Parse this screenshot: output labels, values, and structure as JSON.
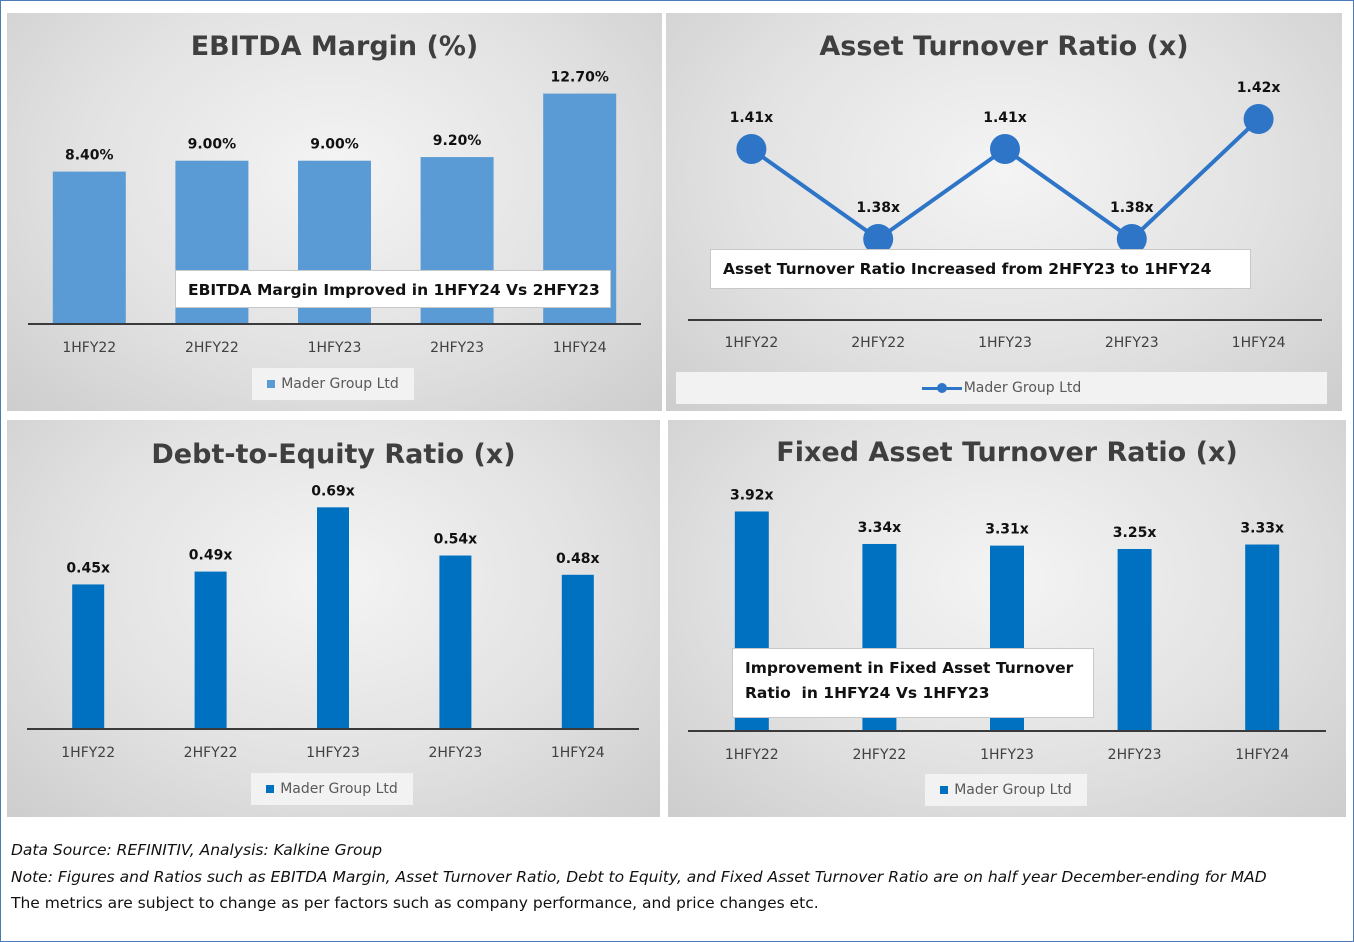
{
  "chart_data": [
    {
      "type": "bar",
      "title": "EBITDA Margin (%)",
      "categories": [
        "1HFY22",
        "2HFY22",
        "1HFY23",
        "2HFY23",
        "1HFY24"
      ],
      "series": [
        {
          "name": "Mader Group Ltd",
          "values": [
            8.4,
            9.0,
            9.0,
            9.2,
            12.7
          ]
        }
      ],
      "data_labels": [
        "8.40%",
        "9.00%",
        "9.00%",
        "9.20%",
        "12.70%"
      ],
      "ylim": [
        0,
        14
      ],
      "color": "#5b9bd5",
      "grid": false,
      "legend": "bottom",
      "annotation": "EBITDA Margin Improved in 1HFY24 Vs 2HFY23"
    },
    {
      "type": "line",
      "title": "Asset Turnover Ratio (x)",
      "categories": [
        "1HFY22",
        "2HFY22",
        "1HFY23",
        "2HFY23",
        "1HFY24"
      ],
      "series": [
        {
          "name": "Mader Group Ltd",
          "values": [
            1.41,
            1.38,
            1.41,
            1.38,
            1.42
          ]
        }
      ],
      "data_labels": [
        "1.41x",
        "1.38x",
        "1.41x",
        "1.38x",
        "1.42x"
      ],
      "ylim": [
        1.37,
        1.425
      ],
      "color": "#2e75c8",
      "grid": false,
      "legend": "bottom",
      "annotation": "Asset Turnover Ratio Increased from 2HFY23 to 1HFY24"
    },
    {
      "type": "bar",
      "title": "Debt-to-Equity Ratio (x)",
      "categories": [
        "1HFY22",
        "2HFY22",
        "1HFY23",
        "2HFY23",
        "1HFY24"
      ],
      "series": [
        {
          "name": "Mader Group Ltd",
          "values": [
            0.45,
            0.49,
            0.69,
            0.54,
            0.48
          ]
        }
      ],
      "data_labels": [
        "0.45x",
        "0.49x",
        "0.69x",
        "0.54x",
        "0.48x"
      ],
      "ylim": [
        0,
        0.8
      ],
      "color": "#0070c0",
      "grid": false,
      "legend": "bottom"
    },
    {
      "type": "bar",
      "title": "Fixed Asset Turnover Ratio (x)",
      "categories": [
        "1HFY22",
        "2HFY22",
        "1HFY23",
        "2HFY23",
        "1HFY24"
      ],
      "series": [
        {
          "name": "Mader Group Ltd",
          "values": [
            3.92,
            3.34,
            3.31,
            3.25,
            3.33
          ]
        }
      ],
      "data_labels": [
        "3.92x",
        "3.34x",
        "3.31x",
        "3.25x",
        "3.33x"
      ],
      "ylim": [
        0,
        4.5
      ],
      "color": "#0070c0",
      "grid": false,
      "legend": "bottom",
      "annotation_lines": [
        "Improvement in Fixed Asset Turnover",
        "Ratio  in 1HFY24 Vs 1HFY23"
      ]
    }
  ],
  "footer": {
    "source": "Data Source: REFINITIV, Analysis: Kalkine Group",
    "note": "Note: Figures and Ratios such as EBITDA Margin, Asset Turnover Ratio, Debt to Equity, and Fixed Asset Turnover Ratio are on half year December-ending for MAD",
    "disclaimer": "The metrics are subject to change as per factors such as company performance, and price changes etc."
  }
}
